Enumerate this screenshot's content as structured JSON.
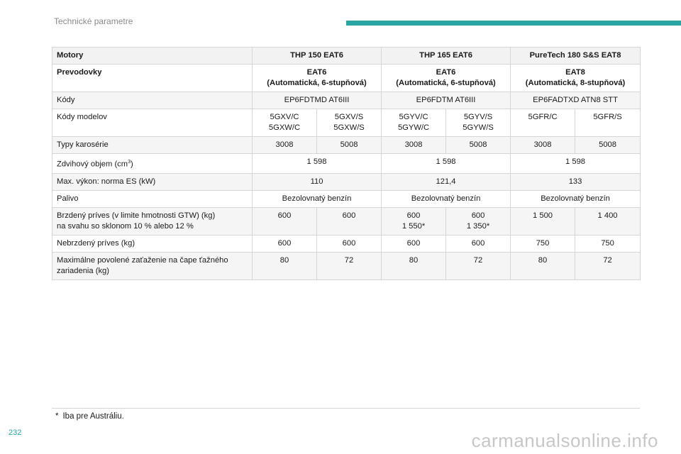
{
  "header": {
    "section_title": "Technické parametre"
  },
  "table": {
    "motory": {
      "label": "Motory",
      "e1": "THP 150 EAT6",
      "e2": "THP 165 EAT6",
      "e3": "PureTech 180 S&S EAT8"
    },
    "prevodovky": {
      "label": "Prevodovky",
      "e1_l1": "EAT6",
      "e1_l2": "(Automatická,  6-stupňová)",
      "e2_l1": "EAT6",
      "e2_l2": "(Automatická, 6-stupňová)",
      "e3_l1": "EAT8",
      "e3_l2": "(Automatická,  8-stupňová)"
    },
    "kody": {
      "label": "Kódy",
      "e1": "EP6FDTMD AT6III",
      "e2": "EP6FDTM AT6III",
      "e3": "EP6FADTXD ATN8 STT"
    },
    "kody_modelov": {
      "label": "Kódy modelov",
      "c1_l1": "5GXV/C",
      "c1_l2": "5GXW/C",
      "c2_l1": "5GXV/S",
      "c2_l2": "5GXW/S",
      "c3_l1": "5GYV/C",
      "c3_l2": "5GYW/C",
      "c4_l1": "5GYV/S",
      "c4_l2": "5GYW/S",
      "c5": "5GFR/C",
      "c6": "5GFR/S"
    },
    "typy": {
      "label": "Typy karosérie",
      "c1": "3008",
      "c2": "5008",
      "c3": "3008",
      "c4": "5008",
      "c5": "3008",
      "c6": "5008"
    },
    "objem": {
      "label_prefix": "Zdvihový objem (cm",
      "label_sup": "3",
      "label_suffix": ")",
      "e1": "1 598",
      "e2": "1 598",
      "e3": "1 598"
    },
    "vykon": {
      "label": "Max. výkon: norma ES (kW)",
      "e1": "110",
      "e2": "121,4",
      "e3": "133"
    },
    "palivo": {
      "label": "Palivo",
      "e1": "Bezolovnatý benzín",
      "e2": "Bezolovnatý benzín",
      "e3": "Bezolovnatý benzín"
    },
    "brzdeny": {
      "label_l1": "Brzdený príves (v limite hmotnosti GTW) (kg)",
      "label_l2": "na svahu so sklonom 10 % alebo 12 %",
      "c1": "600",
      "c2": "600",
      "c3_l1": "600",
      "c3_l2": "1 550*",
      "c4_l1": "600",
      "c4_l2": "1 350*",
      "c5": "1 500",
      "c6": "1 400"
    },
    "nebrzdeny": {
      "label": "Nebrzdený príves (kg)",
      "c1": "600",
      "c2": "600",
      "c3": "600",
      "c4": "600",
      "c5": "750",
      "c6": "750"
    },
    "zatazenie": {
      "label_l1": "Maximálne povolené zaťaženie na čape ťažného",
      "label_l2": "zariadenia (kg)",
      "c1": "80",
      "c2": "72",
      "c3": "80",
      "c4": "72",
      "c5": "80",
      "c6": "72"
    }
  },
  "footnote": {
    "mark": "*",
    "text": "Iba pre Austráliu."
  },
  "page_number": "232",
  "watermark": "carmanualsonline.info",
  "colors": {
    "accent": "#2aa3a3"
  }
}
